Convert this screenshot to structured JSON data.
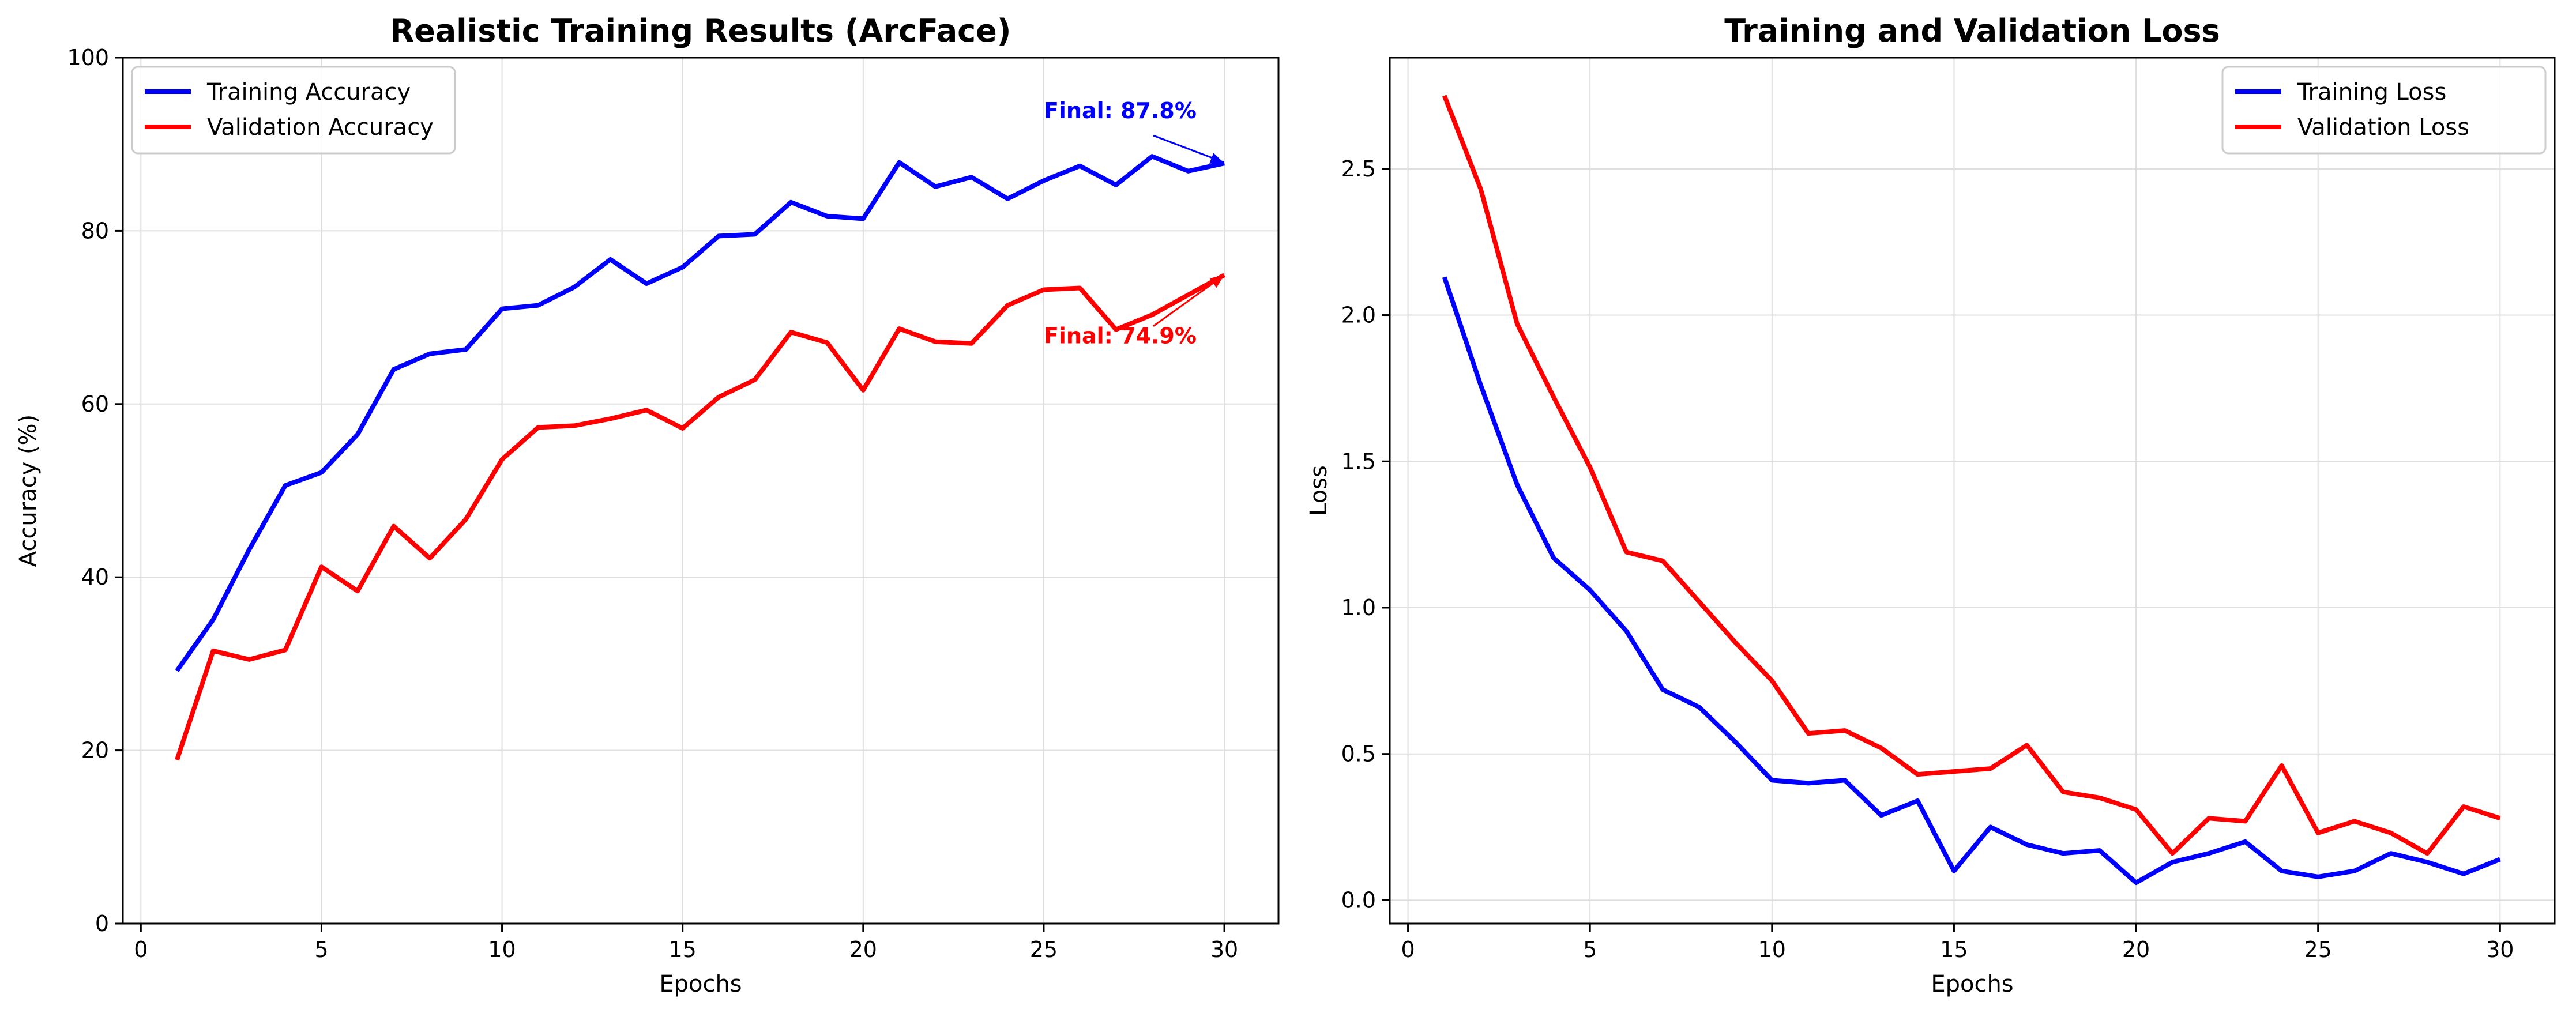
{
  "chart_data": [
    {
      "type": "line",
      "title": "Realistic Training Results (ArcFace)",
      "xlabel": "Epochs",
      "ylabel": "Accuracy (%)",
      "xlim": [
        -0.5,
        31.5
      ],
      "ylim": [
        0,
        100
      ],
      "xticks": [
        0,
        5,
        10,
        15,
        20,
        25,
        30
      ],
      "yticks": [
        0,
        20,
        40,
        60,
        80,
        100
      ],
      "grid": true,
      "legend_position": "upper left",
      "x": [
        1,
        2,
        3,
        4,
        5,
        6,
        7,
        8,
        9,
        10,
        11,
        12,
        13,
        14,
        15,
        16,
        17,
        18,
        19,
        20,
        21,
        22,
        23,
        24,
        25,
        26,
        27,
        28,
        29,
        30
      ],
      "series": [
        {
          "name": "Training Accuracy",
          "color": "#0000ff",
          "values": [
            29.2,
            35.1,
            43.2,
            50.6,
            52.1,
            56.5,
            64.0,
            65.8,
            66.3,
            71.0,
            71.4,
            73.5,
            76.7,
            73.9,
            75.8,
            79.4,
            79.6,
            83.3,
            81.7,
            81.4,
            87.9,
            85.1,
            86.2,
            83.7,
            85.8,
            87.5,
            85.3,
            88.6,
            86.9,
            87.8
          ]
        },
        {
          "name": "Validation Accuracy",
          "color": "#ff0000",
          "values": [
            18.9,
            31.5,
            30.5,
            31.6,
            41.2,
            38.4,
            45.9,
            42.2,
            46.7,
            53.6,
            57.3,
            57.5,
            58.3,
            59.3,
            57.2,
            60.8,
            62.8,
            68.3,
            67.1,
            61.6,
            68.7,
            67.2,
            67.0,
            71.4,
            73.2,
            73.4,
            68.6,
            70.3,
            72.6,
            74.9
          ]
        }
      ],
      "annotations": [
        {
          "text": "Final: 87.8%",
          "color": "#0000ff",
          "text_x": 25,
          "text_y": 93,
          "arrow_x": 30,
          "arrow_y": 87.8
        },
        {
          "text": "Final: 74.9%",
          "color": "#ff0000",
          "text_x": 25,
          "text_y": 67,
          "arrow_x": 30,
          "arrow_y": 74.9
        }
      ]
    },
    {
      "type": "line",
      "title": "Training and Validation Loss",
      "xlabel": "Epochs",
      "ylabel": "Loss",
      "xlim": [
        -0.5,
        31.5
      ],
      "ylim": [
        -0.08,
        2.88
      ],
      "xticks": [
        0,
        5,
        10,
        15,
        20,
        25,
        30
      ],
      "yticks": [
        0.0,
        0.5,
        1.0,
        1.5,
        2.0,
        2.5
      ],
      "ytick_labels": [
        "0.0",
        "0.5",
        "1.0",
        "1.5",
        "2.0",
        "2.5"
      ],
      "grid": true,
      "legend_position": "upper right",
      "x": [
        1,
        2,
        3,
        4,
        5,
        6,
        7,
        8,
        9,
        10,
        11,
        12,
        13,
        14,
        15,
        16,
        17,
        18,
        19,
        20,
        21,
        22,
        23,
        24,
        25,
        26,
        27,
        28,
        29,
        30
      ],
      "series": [
        {
          "name": "Training Loss",
          "color": "#0000ff",
          "values": [
            2.13,
            1.76,
            1.42,
            1.17,
            1.06,
            0.92,
            0.72,
            0.66,
            0.54,
            0.41,
            0.4,
            0.41,
            0.29,
            0.34,
            0.1,
            0.25,
            0.19,
            0.16,
            0.17,
            0.06,
            0.13,
            0.16,
            0.2,
            0.1,
            0.08,
            0.1,
            0.16,
            0.13,
            0.09,
            0.14
          ]
        },
        {
          "name": "Validation Loss",
          "color": "#ff0000",
          "values": [
            2.75,
            2.43,
            1.97,
            1.72,
            1.48,
            1.19,
            1.16,
            1.02,
            0.88,
            0.75,
            0.57,
            0.58,
            0.52,
            0.43,
            0.44,
            0.45,
            0.53,
            0.37,
            0.35,
            0.31,
            0.16,
            0.28,
            0.27,
            0.46,
            0.23,
            0.27,
            0.23,
            0.16,
            0.32,
            0.28
          ]
        }
      ],
      "annotations": []
    }
  ]
}
